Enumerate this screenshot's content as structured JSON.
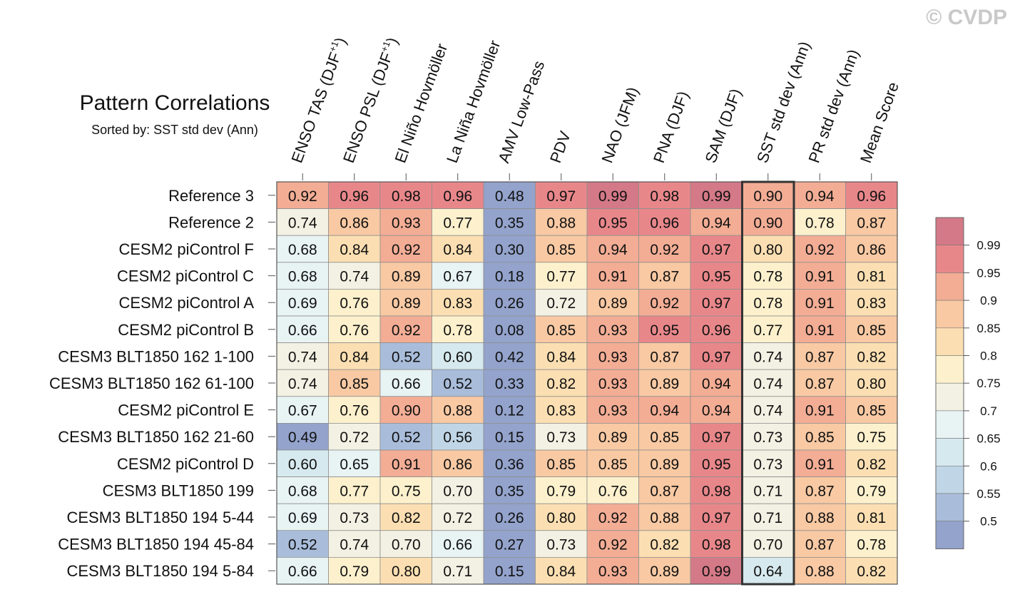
{
  "watermark": "© CVDP",
  "chart_data": {
    "type": "heatmap",
    "title": "Pattern Correlations",
    "subtitle": "Sorted by: SST std dev (Ann)",
    "columns": [
      {
        "base": "ENSO TAS (DJF",
        "sup": "+1",
        "tail": ")"
      },
      {
        "base": "ENSO PSL (DJF",
        "sup": "+1",
        "tail": ")"
      },
      {
        "base": "El Niño Hovmöller"
      },
      {
        "base": "La Niña Hovmöller"
      },
      {
        "base": "AMV Low-Pass"
      },
      {
        "base": "PDV"
      },
      {
        "base": "NAO (JFM)"
      },
      {
        "base": "PNA (DJF)"
      },
      {
        "base": "SAM (DJF)"
      },
      {
        "base": "SST std dev (Ann)"
      },
      {
        "base": "PR std dev (Ann)"
      },
      {
        "base": "Mean Score"
      }
    ],
    "highlight_column": 9,
    "rows": [
      "Reference 3",
      "Reference 2",
      "CESM2 piControl F",
      "CESM2 piControl C",
      "CESM2 piControl A",
      "CESM2 piControl B",
      "CESM3 BLT1850 162 1-100",
      "CESM3 BLT1850 162 61-100",
      "CESM2 piControl E",
      "CESM3 BLT1850 162 21-60",
      "CESM2 piControl D",
      "CESM3 BLT1850 199",
      "CESM3 BLT1850 194 5-44",
      "CESM3 BLT1850 194 45-84",
      "CESM3 BLT1850 194 5-84"
    ],
    "values": [
      [
        "0.92",
        "0.96",
        "0.98",
        "0.96",
        "0.48",
        "0.97",
        "0.99",
        "0.98",
        "0.99",
        "0.90",
        "0.94",
        "0.96"
      ],
      [
        "0.74",
        "0.86",
        "0.93",
        "0.77",
        "0.35",
        "0.88",
        "0.95",
        "0.96",
        "0.94",
        "0.90",
        "0.78",
        "0.87"
      ],
      [
        "0.68",
        "0.84",
        "0.92",
        "0.84",
        "0.30",
        "0.85",
        "0.94",
        "0.92",
        "0.97",
        "0.80",
        "0.92",
        "0.86"
      ],
      [
        "0.68",
        "0.74",
        "0.89",
        "0.67",
        "0.18",
        "0.77",
        "0.91",
        "0.87",
        "0.95",
        "0.78",
        "0.91",
        "0.81"
      ],
      [
        "0.69",
        "0.76",
        "0.89",
        "0.83",
        "0.26",
        "0.72",
        "0.89",
        "0.92",
        "0.97",
        "0.78",
        "0.91",
        "0.83"
      ],
      [
        "0.66",
        "0.76",
        "0.92",
        "0.78",
        "0.08",
        "0.85",
        "0.93",
        "0.95",
        "0.96",
        "0.77",
        "0.91",
        "0.85"
      ],
      [
        "0.74",
        "0.84",
        "0.52",
        "0.60",
        "0.42",
        "0.84",
        "0.93",
        "0.87",
        "0.97",
        "0.74",
        "0.87",
        "0.82"
      ],
      [
        "0.74",
        "0.85",
        "0.66",
        "0.52",
        "0.33",
        "0.82",
        "0.93",
        "0.89",
        "0.94",
        "0.74",
        "0.87",
        "0.80"
      ],
      [
        "0.67",
        "0.76",
        "0.90",
        "0.88",
        "0.12",
        "0.83",
        "0.93",
        "0.94",
        "0.94",
        "0.74",
        "0.91",
        "0.85"
      ],
      [
        "0.49",
        "0.72",
        "0.52",
        "0.56",
        "0.15",
        "0.73",
        "0.89",
        "0.85",
        "0.97",
        "0.73",
        "0.85",
        "0.75"
      ],
      [
        "0.60",
        "0.65",
        "0.91",
        "0.86",
        "0.36",
        "0.85",
        "0.85",
        "0.89",
        "0.95",
        "0.73",
        "0.91",
        "0.82"
      ],
      [
        "0.68",
        "0.77",
        "0.75",
        "0.70",
        "0.35",
        "0.79",
        "0.76",
        "0.87",
        "0.98",
        "0.71",
        "0.87",
        "0.79"
      ],
      [
        "0.69",
        "0.73",
        "0.82",
        "0.72",
        "0.26",
        "0.80",
        "0.92",
        "0.88",
        "0.97",
        "0.71",
        "0.88",
        "0.81"
      ],
      [
        "0.52",
        "0.74",
        "0.70",
        "0.66",
        "0.27",
        "0.73",
        "0.92",
        "0.82",
        "0.98",
        "0.70",
        "0.87",
        "0.78"
      ],
      [
        "0.66",
        "0.79",
        "0.80",
        "0.71",
        "0.15",
        "0.84",
        "0.93",
        "0.89",
        "0.99",
        "0.64",
        "0.88",
        "0.82"
      ]
    ],
    "colorbar": {
      "levels": [
        "0.99",
        "0.95",
        "0.9",
        "0.85",
        "0.8",
        "0.75",
        "0.7",
        "0.65",
        "0.6",
        "0.55",
        "0.5"
      ],
      "thresholds": [
        0.5,
        0.55,
        0.6,
        0.65,
        0.7,
        0.75,
        0.8,
        0.85,
        0.9,
        0.95,
        0.99
      ],
      "colors": [
        "#93a3cc",
        "#a9bddb",
        "#c0d6e6",
        "#d6e9ee",
        "#e8f3f3",
        "#f3f1e3",
        "#fdf1cd",
        "#fbdfb2",
        "#f8c9a3",
        "#f3ad95",
        "#e8878a",
        "#d47987"
      ]
    }
  }
}
